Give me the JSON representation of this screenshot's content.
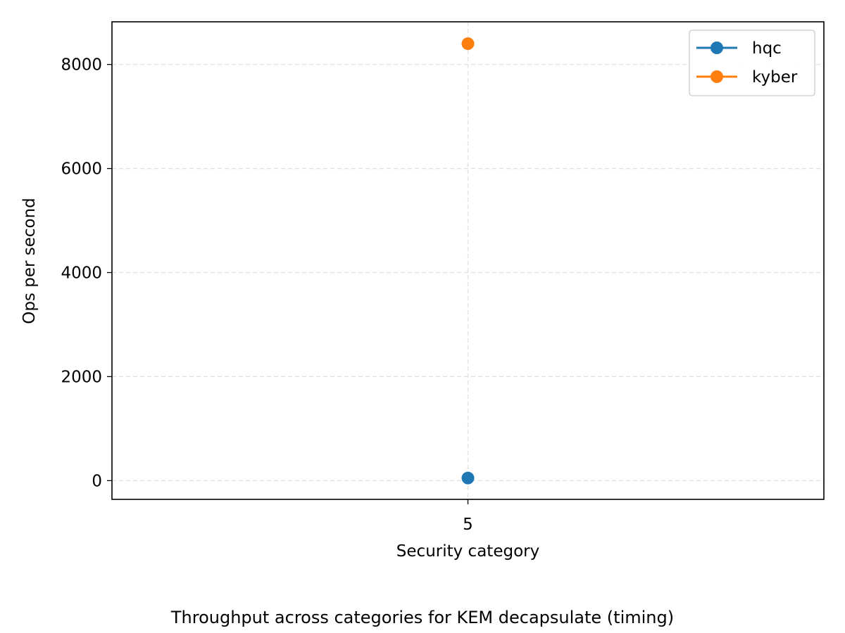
{
  "caption": "Throughput across categories for KEM decapsulate (timing)",
  "chart_data": {
    "type": "line",
    "title": "",
    "xlabel": "Security category",
    "ylabel": "Ops per second",
    "x": [
      5
    ],
    "xticks": [
      "5"
    ],
    "yticks": [
      0,
      2000,
      4000,
      6000,
      8000
    ],
    "ylim": [
      -360,
      8820
    ],
    "grid": true,
    "legend_position": "top-right",
    "series": [
      {
        "name": "hqc",
        "color": "#1f77b4",
        "values": [
          50
        ]
      },
      {
        "name": "kyber",
        "color": "#ff7f0e",
        "values": [
          8400
        ]
      }
    ]
  }
}
